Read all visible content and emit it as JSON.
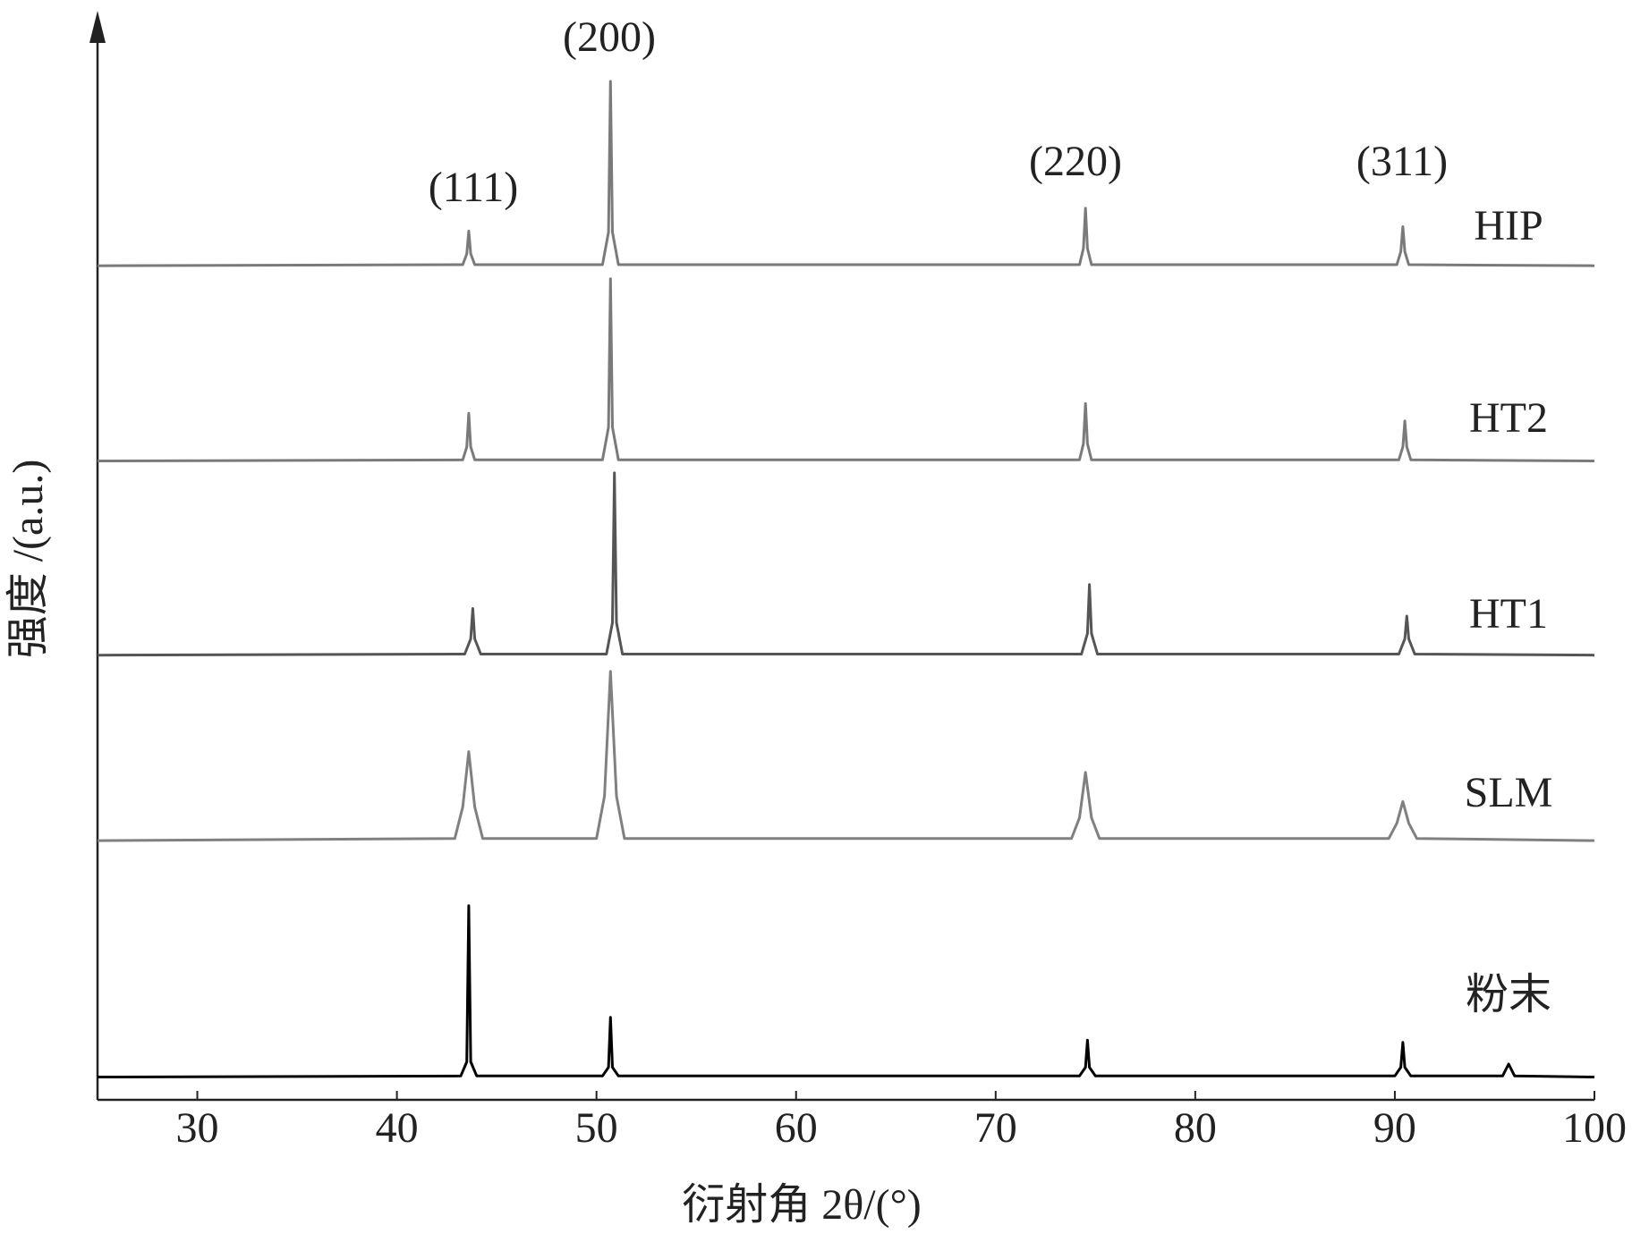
{
  "chart_data": {
    "type": "line",
    "xlabel": "衍射角 2θ/(°)",
    "ylabel": "强度 /(a.u.)",
    "xlim": [
      25,
      100
    ],
    "xticks": [
      30,
      40,
      50,
      60,
      70,
      80,
      90,
      100
    ],
    "ylim": [
      0,
      100
    ],
    "annotations": [
      "(111)",
      "(200)",
      "(220)",
      "(311)"
    ],
    "series": [
      {
        "name": "HIP",
        "color": "#7a7a7a",
        "x": [
          25,
          43.3,
          43.5,
          43.6,
          43.7,
          43.9,
          50.3,
          50.6,
          50.7,
          50.8,
          51.1,
          74.2,
          74.4,
          74.5,
          74.6,
          74.8,
          90.1,
          90.3,
          90.4,
          90.5,
          90.7,
          100
        ],
        "values": [
          76.9,
          77.0,
          78.0,
          80.1,
          78.0,
          77.0,
          77.0,
          80.0,
          93.9,
          80.0,
          77.0,
          77.0,
          78.5,
          82.2,
          78.5,
          77.0,
          77.0,
          78.2,
          80.5,
          78.2,
          77.0,
          76.9
        ]
      },
      {
        "name": "HT2",
        "color": "#7a7a7a",
        "x": [
          25,
          43.3,
          43.5,
          43.6,
          43.7,
          43.9,
          50.3,
          50.6,
          50.7,
          50.8,
          51.1,
          74.2,
          74.4,
          74.5,
          74.6,
          74.8,
          90.2,
          90.4,
          90.5,
          90.6,
          90.8,
          100
        ],
        "values": [
          58.9,
          59.0,
          60.2,
          63.3,
          60.2,
          59.0,
          59.0,
          62.0,
          75.7,
          62.0,
          59.0,
          59.0,
          60.5,
          64.2,
          60.5,
          59.0,
          59.0,
          60.2,
          62.6,
          60.2,
          59.0,
          58.9
        ]
      },
      {
        "name": "HT1",
        "color": "#555555",
        "x": [
          25,
          43.4,
          43.7,
          43.8,
          43.9,
          44.2,
          50.5,
          50.8,
          50.9,
          51.0,
          51.3,
          74.3,
          74.6,
          74.7,
          74.8,
          75.1,
          90.2,
          90.5,
          90.6,
          90.7,
          91.0,
          100
        ],
        "values": [
          41.0,
          41.1,
          42.5,
          45.3,
          42.5,
          41.1,
          41.1,
          44.0,
          57.8,
          44.0,
          41.1,
          41.1,
          43.0,
          47.5,
          43.0,
          41.1,
          41.1,
          42.5,
          44.6,
          42.5,
          41.1,
          41.0
        ]
      },
      {
        "name": "SLM",
        "color": "#808080",
        "x": [
          25,
          42.9,
          43.3,
          43.6,
          43.9,
          44.3,
          50.0,
          50.4,
          50.7,
          51.0,
          51.4,
          73.8,
          74.2,
          74.5,
          74.8,
          75.2,
          89.7,
          90.1,
          90.4,
          90.7,
          91.1,
          100
        ],
        "values": [
          23.9,
          24.1,
          27.0,
          32.1,
          27.0,
          24.1,
          24.1,
          28.0,
          39.5,
          28.0,
          24.1,
          24.1,
          26.0,
          30.2,
          26.0,
          24.1,
          24.1,
          25.5,
          27.5,
          25.5,
          24.1,
          23.9
        ]
      },
      {
        "name": "粉末",
        "color": "#000000",
        "x": [
          25,
          43.2,
          43.5,
          43.6,
          43.7,
          44.0,
          50.3,
          50.6,
          50.7,
          50.8,
          51.1,
          74.2,
          74.5,
          74.6,
          74.7,
          75.0,
          90.0,
          90.3,
          90.4,
          90.5,
          90.8,
          95.4,
          95.7,
          96.0,
          100
        ],
        "values": [
          2.1,
          2.2,
          3.5,
          17.9,
          3.5,
          2.2,
          2.2,
          3.0,
          7.6,
          3.0,
          2.2,
          2.2,
          3.0,
          5.5,
          3.0,
          2.2,
          2.2,
          3.0,
          5.3,
          3.0,
          2.2,
          2.2,
          3.3,
          2.2,
          2.1
        ]
      }
    ]
  }
}
